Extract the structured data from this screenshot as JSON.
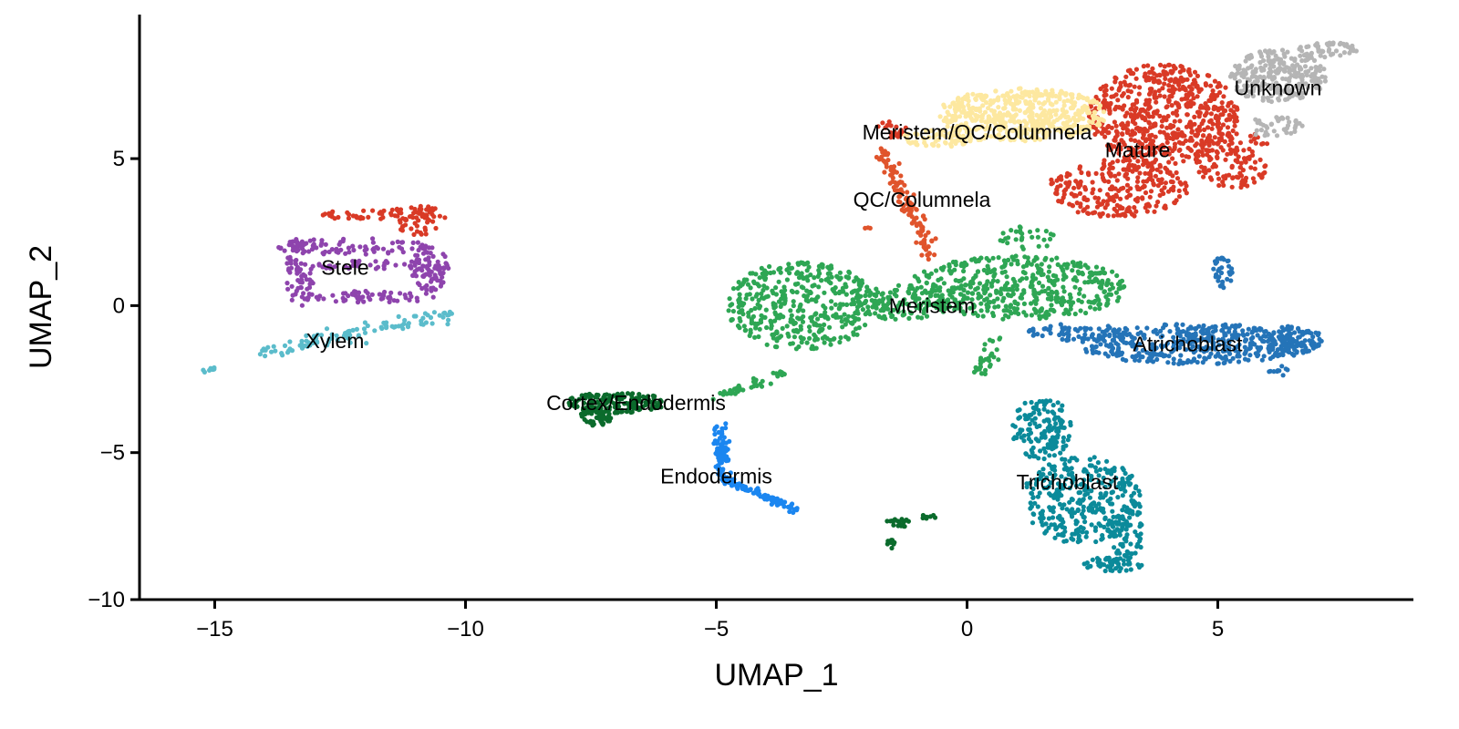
{
  "chart_data": {
    "type": "scatter",
    "title": "",
    "xlabel": "UMAP_1",
    "ylabel": "UMAP_2",
    "xlim": [
      -16.5,
      8.9
    ],
    "ylim": [
      -10,
      9.9
    ],
    "xticks": [
      -15,
      -10,
      -5,
      0,
      5
    ],
    "yticks": [
      -10,
      -5,
      0,
      5
    ],
    "grid": false,
    "legend": "none",
    "series": [
      {
        "name": "Stele",
        "color": "#8e44ad",
        "regions": [
          {
            "type": "ellipse",
            "cx": -12.2,
            "cy": 2.0,
            "rx": 1.6,
            "ry": 0.3,
            "n": 80
          },
          {
            "type": "ellipse",
            "cx": -12.0,
            "cy": 0.3,
            "rx": 1.6,
            "ry": 0.2,
            "n": 60
          },
          {
            "type": "ellipse",
            "cx": -13.3,
            "cy": 1.1,
            "rx": 0.3,
            "ry": 1.2,
            "n": 60
          },
          {
            "type": "ellipse",
            "cx": -10.7,
            "cy": 1.3,
            "rx": 0.4,
            "ry": 0.8,
            "n": 80
          },
          {
            "type": "ellipse",
            "cx": -12.0,
            "cy": 1.4,
            "rx": 1.4,
            "ry": 0.15,
            "n": 40
          }
        ]
      },
      {
        "name": "Xylem",
        "color": "#5bbccb",
        "regions": [
          {
            "type": "line",
            "x1": -14.1,
            "y1": -1.6,
            "x2": -10.3,
            "y2": -0.3,
            "spread": 0.22,
            "n": 110
          },
          {
            "type": "line",
            "x1": -15.3,
            "y1": -2.3,
            "x2": -15.0,
            "y2": -2.1,
            "spread": 0.05,
            "n": 10
          }
        ]
      },
      {
        "name": "Stele",
        "color": "#d93a26",
        "hidden_label": true,
        "regions": [
          {
            "type": "ellipse",
            "cx": -11.6,
            "cy": 3.1,
            "rx": 1.5,
            "ry": 0.2,
            "n": 60
          },
          {
            "type": "ellipse",
            "cx": -10.9,
            "cy": 2.9,
            "rx": 0.5,
            "ry": 0.5,
            "n": 40
          }
        ]
      },
      {
        "name": "Meristem",
        "color": "#2ea654",
        "regions": [
          {
            "type": "ellipse",
            "cx": -3.3,
            "cy": 0.0,
            "rx": 1.5,
            "ry": 1.5,
            "n": 420
          },
          {
            "type": "ellipse",
            "cx": 1.0,
            "cy": 0.6,
            "rx": 2.2,
            "ry": 1.1,
            "n": 480
          },
          {
            "type": "ellipse",
            "cx": -1.3,
            "cy": 0.1,
            "rx": 1.0,
            "ry": 0.6,
            "n": 120
          },
          {
            "type": "line",
            "x1": -5.0,
            "y1": -3.1,
            "x2": -3.5,
            "y2": -2.2,
            "spread": 0.15,
            "n": 40
          },
          {
            "type": "line",
            "x1": 0.6,
            "y1": -1.0,
            "x2": 0.3,
            "y2": -2.4,
            "spread": 0.2,
            "n": 30
          },
          {
            "type": "ellipse",
            "cx": 1.2,
            "cy": 2.3,
            "rx": 0.6,
            "ry": 0.4,
            "n": 30
          }
        ]
      },
      {
        "name": "Cortex/Endodermis",
        "color": "#0b6b2c",
        "regions": [
          {
            "type": "ellipse",
            "cx": -7.0,
            "cy": -3.3,
            "rx": 1.0,
            "ry": 0.35,
            "n": 170
          },
          {
            "type": "ellipse",
            "cx": -7.4,
            "cy": -3.8,
            "rx": 0.35,
            "ry": 0.3,
            "n": 40
          },
          {
            "type": "ellipse",
            "cx": -1.3,
            "cy": -7.4,
            "rx": 0.35,
            "ry": 0.15,
            "n": 18
          },
          {
            "type": "ellipse",
            "cx": -1.5,
            "cy": -8.1,
            "rx": 0.1,
            "ry": 0.15,
            "n": 8
          },
          {
            "type": "ellipse",
            "cx": -0.8,
            "cy": -7.2,
            "rx": 0.2,
            "ry": 0.1,
            "n": 8
          }
        ]
      },
      {
        "name": "Endodermis",
        "color": "#1b86f0",
        "regions": [
          {
            "type": "line",
            "x1": -4.9,
            "y1": -4.0,
            "x2": -4.85,
            "y2": -5.8,
            "spread": 0.14,
            "n": 70
          },
          {
            "type": "line",
            "x1": -4.85,
            "y1": -5.9,
            "x2": -3.4,
            "y2": -6.95,
            "spread": 0.12,
            "n": 90
          }
        ]
      },
      {
        "name": "Trichoblast",
        "color": "#0b8a9a",
        "regions": [
          {
            "type": "ellipse",
            "cx": 2.3,
            "cy": -6.6,
            "rx": 1.2,
            "ry": 1.5,
            "n": 340
          },
          {
            "type": "ellipse",
            "cx": 1.5,
            "cy": -4.2,
            "rx": 0.6,
            "ry": 1.1,
            "n": 140
          },
          {
            "type": "ellipse",
            "cx": 3.2,
            "cy": -7.8,
            "rx": 0.3,
            "ry": 1.0,
            "n": 60
          },
          {
            "type": "ellipse",
            "cx": 2.9,
            "cy": -8.8,
            "rx": 0.6,
            "ry": 0.25,
            "n": 50
          }
        ]
      },
      {
        "name": "Atrichoblast",
        "color": "#2574b8",
        "regions": [
          {
            "type": "ellipse",
            "cx": 4.5,
            "cy": -1.3,
            "rx": 2.3,
            "ry": 0.7,
            "n": 420
          },
          {
            "type": "ellipse",
            "cx": 6.5,
            "cy": -1.2,
            "rx": 0.6,
            "ry": 0.5,
            "n": 90
          },
          {
            "type": "ellipse",
            "cx": 2.2,
            "cy": -0.9,
            "rx": 1.0,
            "ry": 0.3,
            "n": 60
          },
          {
            "type": "ellipse",
            "cx": 5.1,
            "cy": 1.2,
            "rx": 0.2,
            "ry": 0.6,
            "n": 30
          },
          {
            "type": "ellipse",
            "cx": 6.2,
            "cy": -2.2,
            "rx": 0.2,
            "ry": 0.2,
            "n": 10
          }
        ]
      },
      {
        "name": "Mature",
        "color": "#d93a26",
        "regions": [
          {
            "type": "ellipse",
            "cx": 3.9,
            "cy": 6.5,
            "rx": 1.5,
            "ry": 1.7,
            "n": 600
          },
          {
            "type": "ellipse",
            "cx": 3.0,
            "cy": 4.0,
            "rx": 1.4,
            "ry": 1.0,
            "n": 260
          },
          {
            "type": "ellipse",
            "cx": 5.3,
            "cy": 5.0,
            "rx": 0.8,
            "ry": 1.0,
            "n": 130
          },
          {
            "type": "ellipse",
            "cx": -1.5,
            "cy": 6.0,
            "rx": 0.3,
            "ry": 0.3,
            "n": 20
          }
        ]
      },
      {
        "name": "Meristem/QC/Columnela",
        "color": "#fde8a0",
        "regions": [
          {
            "type": "ellipse",
            "cx": 1.1,
            "cy": 6.5,
            "rx": 1.7,
            "ry": 0.9,
            "n": 500
          },
          {
            "type": "ellipse",
            "cx": -0.5,
            "cy": 5.7,
            "rx": 0.8,
            "ry": 0.3,
            "n": 60
          }
        ]
      },
      {
        "name": "QC/Columnela",
        "color": "#e0542c",
        "regions": [
          {
            "type": "line",
            "x1": -1.7,
            "y1": 5.3,
            "x2": -0.7,
            "y2": 1.7,
            "spread": 0.18,
            "n": 120
          },
          {
            "type": "ellipse",
            "cx": -2.0,
            "cy": 2.6,
            "rx": 0.08,
            "ry": 0.08,
            "n": 3
          }
        ]
      },
      {
        "name": "Unknown",
        "color": "#b5b5b5",
        "regions": [
          {
            "type": "ellipse",
            "cx": 6.2,
            "cy": 7.8,
            "rx": 1.0,
            "ry": 0.9,
            "n": 260
          },
          {
            "type": "ellipse",
            "cx": 7.2,
            "cy": 8.7,
            "rx": 0.6,
            "ry": 0.25,
            "n": 50
          },
          {
            "type": "ellipse",
            "cx": 6.1,
            "cy": 6.1,
            "rx": 0.6,
            "ry": 0.35,
            "n": 40
          }
        ]
      }
    ],
    "annotations": [
      {
        "text": "Unknown",
        "x": 6.2,
        "y": 7.4
      },
      {
        "text": "Meristem/QC/Columnela",
        "x": 0.2,
        "y": 5.9
      },
      {
        "text": "Mature",
        "x": 3.4,
        "y": 5.3
      },
      {
        "text": "QC/Columnela",
        "x": -0.9,
        "y": 3.6
      },
      {
        "text": "Stele",
        "x": -12.4,
        "y": 1.3
      },
      {
        "text": "Meristem",
        "x": -0.7,
        "y": 0.0
      },
      {
        "text": "Xylem",
        "x": -12.6,
        "y": -1.2
      },
      {
        "text": "Atrichoblast",
        "x": 4.4,
        "y": -1.3
      },
      {
        "text": "Cortex/Endodermis",
        "x": -6.6,
        "y": -3.3
      },
      {
        "text": "Endodermis",
        "x": -5.0,
        "y": -5.8
      },
      {
        "text": "Trichoblast",
        "x": 2.0,
        "y": -6.0
      }
    ]
  }
}
